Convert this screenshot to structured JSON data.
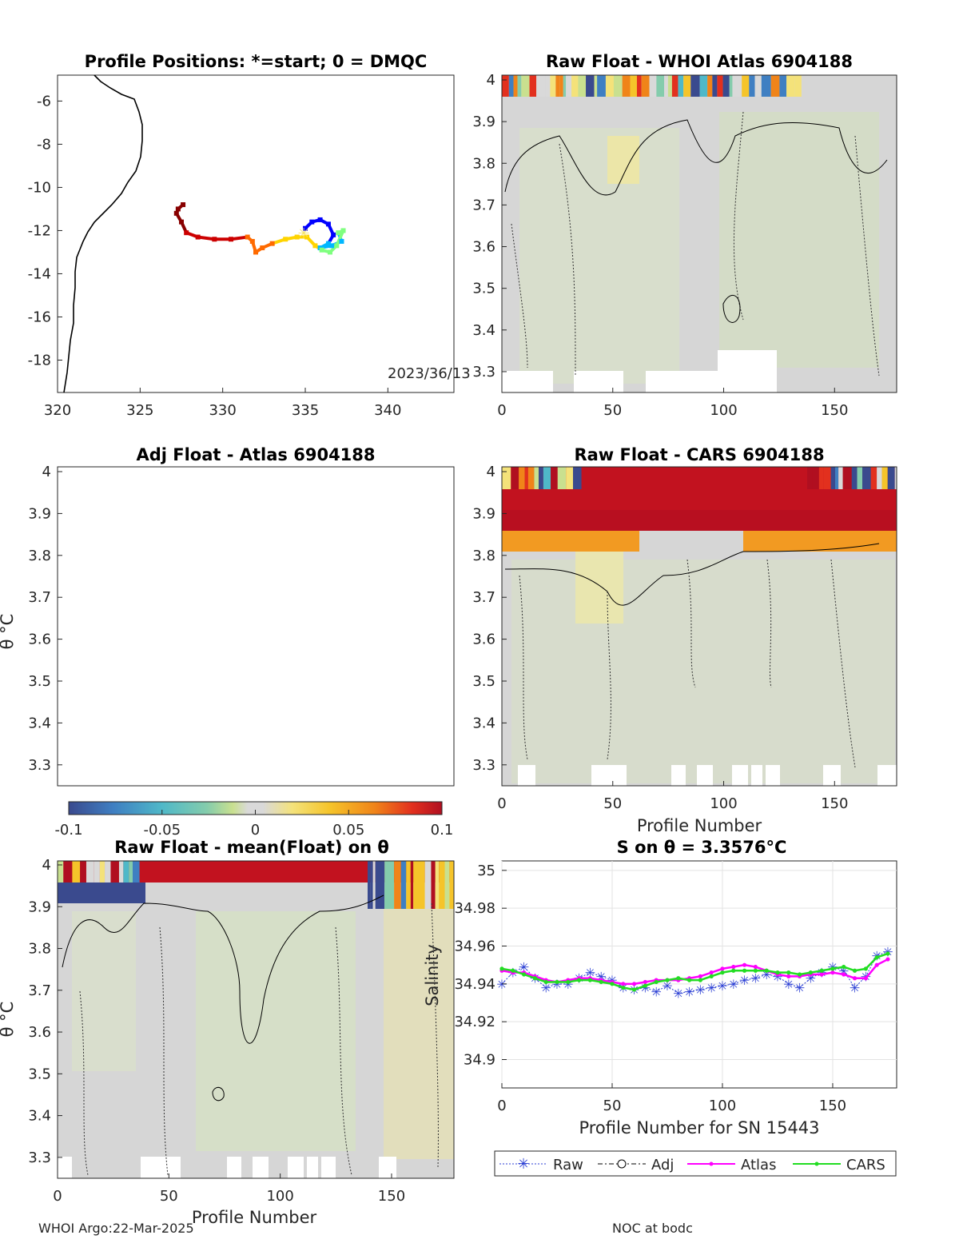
{
  "colors": {
    "axis": "#262626",
    "colormap": [
      "#3a4a8e",
      "#3f7fc2",
      "#4fb8c8",
      "#84ccac",
      "#c9e08f",
      "#d9d9d9",
      "#d9d9d9",
      "#f4e27a",
      "#f5c42a",
      "#f08419",
      "#e2301e",
      "#b00f20"
    ],
    "track": [
      "#0000ff",
      "#00b7ff",
      "#7fff7f",
      "#ffd400",
      "#ff6a00",
      "#cc0000",
      "#880000"
    ],
    "raw": "#2b3fd4",
    "adj": "#000000",
    "atlas": "#ff00ff",
    "cars": "#22dd22"
  },
  "panels": {
    "map": {
      "title": "Profile Positions: *=start; 0 = DMQC",
      "date_label": "2023/36/13",
      "xticks": [
        "320",
        "325",
        "330",
        "335",
        "340"
      ],
      "yticks": [
        "-6",
        "-8",
        "-10",
        "-12",
        "-14",
        "-16",
        "-18"
      ],
      "track_lon": [
        335.0,
        335.4,
        335.9,
        336.4,
        336.7,
        336.4,
        335.9,
        336.6,
        337.2,
        337.0,
        337.3,
        336.9,
        336.5,
        336.0,
        335.6,
        335.1,
        334.5,
        333.8,
        333.0,
        332.4,
        332.0,
        331.8,
        331.5,
        330.5,
        329.5,
        328.5,
        327.8,
        327.5,
        327.2,
        327.3,
        327.6
      ],
      "track_lat": [
        -11.9,
        -11.6,
        -11.5,
        -11.7,
        -12.2,
        -12.6,
        -12.8,
        -12.7,
        -12.5,
        -12.1,
        -12.0,
        -12.7,
        -13.0,
        -12.9,
        -12.7,
        -12.3,
        -12.3,
        -12.4,
        -12.6,
        -12.8,
        -13.0,
        -12.5,
        -12.3,
        -12.4,
        -12.4,
        -12.3,
        -12.1,
        -11.6,
        -11.2,
        -11.0,
        -10.8
      ]
    },
    "whoi": {
      "title": "Raw Float - WHOI Atlas  6904188",
      "xticks": [
        "0",
        "50",
        "100",
        "150"
      ],
      "yticks": [
        "4",
        "3.9",
        "3.8",
        "3.7",
        "3.6",
        "3.5",
        "3.4",
        "3.3"
      ]
    },
    "adj": {
      "title": "Adj Float - Atlas  6904188",
      "ylabel": "θ °C",
      "yticks": [
        "4",
        "3.9",
        "3.8",
        "3.7",
        "3.6",
        "3.5",
        "3.4",
        "3.3"
      ]
    },
    "cars": {
      "title": "Raw Float - CARS  6904188",
      "xlabel": "Profile Number",
      "xticks": [
        "0",
        "50",
        "100",
        "150"
      ],
      "yticks": [
        "4",
        "3.9",
        "3.8",
        "3.7",
        "3.6",
        "3.5",
        "3.4",
        "3.3"
      ]
    },
    "mean": {
      "title": "Raw Float - mean(Float) on θ",
      "xlabel": "Profile Number",
      "ylabel": "θ °C",
      "xticks": [
        "0",
        "50",
        "100",
        "150"
      ],
      "yticks": [
        "4",
        "3.9",
        "3.8",
        "3.7",
        "3.6",
        "3.5",
        "3.4",
        "3.3"
      ]
    },
    "colorbar": {
      "ticks": [
        "-0.1",
        "-0.05",
        "0",
        "0.05",
        "0.1"
      ]
    },
    "salinity": {
      "title": "S on θ = 3.3576°C",
      "xlabel": "Profile Number for SN 15443",
      "ylabel": "Salinity",
      "xticks": [
        "0",
        "50",
        "100",
        "150"
      ],
      "yticks": [
        "35",
        "34.98",
        "34.96",
        "34.94",
        "34.92",
        "34.9"
      ]
    }
  },
  "legend": {
    "raw": "Raw",
    "adj": "Adj",
    "atlas": "Atlas",
    "cars": "CARS"
  },
  "footer": {
    "left": "WHOI Argo:22-Mar-2025",
    "right": "NOC at bodc"
  },
  "chart_data": [
    {
      "type": "scatter",
      "title": "Profile Positions: *=start; 0 = DMQC",
      "xlim": [
        320,
        344
      ],
      "ylim": [
        -19.5,
        -4.8
      ],
      "series": [
        {
          "x": [
            335.0,
            335.4,
            335.9,
            336.4,
            336.7,
            336.4,
            335.9,
            336.6,
            337.2,
            337.0,
            337.3,
            336.9,
            336.5,
            336.0,
            335.6,
            335.1,
            334.5,
            333.8,
            333.0,
            332.4,
            332.0,
            331.8,
            331.5,
            330.5,
            329.5,
            328.5,
            327.8,
            327.5,
            327.2,
            327.3,
            327.6
          ],
          "y": [
            -11.9,
            -11.6,
            -11.5,
            -11.7,
            -12.2,
            -12.6,
            -12.8,
            -12.7,
            -12.5,
            -12.1,
            -12.0,
            -12.7,
            -13.0,
            -12.9,
            -12.7,
            -12.3,
            -12.3,
            -12.4,
            -12.6,
            -12.8,
            -13.0,
            -12.5,
            -12.3,
            -12.4,
            -12.4,
            -12.3,
            -12.1,
            -11.6,
            -11.2,
            -11.0,
            -10.8
          ]
        }
      ]
    },
    {
      "type": "heatmap",
      "title": "Raw Float - WHOI Atlas  6904188",
      "xlim": [
        0,
        178
      ],
      "ylim": [
        3.25,
        4.0
      ],
      "clim": [
        -0.1,
        0.1
      ]
    },
    {
      "type": "heatmap",
      "title": "Adj Float - Atlas  6904188",
      "xlim": [
        0,
        178
      ],
      "ylim": [
        3.25,
        4.0
      ]
    },
    {
      "type": "heatmap",
      "title": "Raw Float - CARS  6904188",
      "xlabel": "Profile Number",
      "xlim": [
        0,
        178
      ],
      "ylim": [
        3.25,
        4.0
      ],
      "clim": [
        -0.1,
        0.1
      ]
    },
    {
      "type": "heatmap",
      "title": "Raw Float - mean(Float) on θ",
      "xlabel": "Profile Number",
      "xlim": [
        0,
        178
      ],
      "ylim": [
        3.25,
        4.0
      ],
      "clim": [
        -0.1,
        0.1
      ]
    },
    {
      "type": "line",
      "title": "S on θ = 3.3576°C",
      "xlabel": "Profile Number for SN 15443",
      "ylabel": "Salinity",
      "xlim": [
        0,
        179
      ],
      "ylim": [
        34.885,
        35.005
      ],
      "series": [
        {
          "name": "Raw",
          "x": [
            0,
            5,
            10,
            15,
            20,
            25,
            30,
            35,
            40,
            45,
            50,
            55,
            60,
            65,
            70,
            75,
            80,
            85,
            90,
            95,
            100,
            105,
            110,
            115,
            120,
            125,
            130,
            135,
            140,
            145,
            150,
            155,
            160,
            165,
            170,
            175
          ],
          "y": [
            34.94,
            34.946,
            34.949,
            34.943,
            34.938,
            34.94,
            34.94,
            34.943,
            34.946,
            34.944,
            34.942,
            34.938,
            34.937,
            34.938,
            34.936,
            34.939,
            34.935,
            34.936,
            34.937,
            34.938,
            34.939,
            34.94,
            34.942,
            34.943,
            34.945,
            34.944,
            34.94,
            34.938,
            34.943,
            34.946,
            34.949,
            34.947,
            34.938,
            34.944,
            34.955,
            34.957
          ]
        },
        {
          "name": "Atlas",
          "x": [
            0,
            5,
            10,
            15,
            20,
            25,
            30,
            35,
            40,
            45,
            50,
            55,
            60,
            65,
            70,
            75,
            80,
            85,
            90,
            95,
            100,
            105,
            110,
            115,
            120,
            125,
            130,
            135,
            140,
            145,
            150,
            155,
            160,
            165,
            170,
            175
          ],
          "y": [
            34.947,
            34.946,
            34.946,
            34.944,
            34.942,
            34.941,
            34.942,
            34.943,
            34.943,
            34.942,
            34.941,
            34.94,
            34.94,
            34.941,
            34.942,
            34.942,
            34.942,
            34.943,
            34.944,
            34.946,
            34.948,
            34.949,
            34.95,
            34.949,
            34.947,
            34.945,
            34.944,
            34.944,
            34.945,
            34.945,
            34.946,
            34.945,
            34.943,
            34.943,
            34.95,
            34.953
          ]
        },
        {
          "name": "CARS",
          "x": [
            0,
            5,
            10,
            15,
            20,
            25,
            30,
            35,
            40,
            45,
            50,
            55,
            60,
            65,
            70,
            75,
            80,
            85,
            90,
            95,
            100,
            105,
            110,
            115,
            120,
            125,
            130,
            135,
            140,
            145,
            150,
            155,
            160,
            165,
            170,
            175
          ],
          "y": [
            34.948,
            34.947,
            34.945,
            34.943,
            34.941,
            34.941,
            34.941,
            34.942,
            34.942,
            34.941,
            34.94,
            34.938,
            34.937,
            34.939,
            34.941,
            34.942,
            34.943,
            34.942,
            34.942,
            34.944,
            34.946,
            34.947,
            34.947,
            34.947,
            34.947,
            34.946,
            34.946,
            34.945,
            34.946,
            34.947,
            34.948,
            34.949,
            34.947,
            34.948,
            34.954,
            34.956
          ]
        }
      ]
    }
  ]
}
